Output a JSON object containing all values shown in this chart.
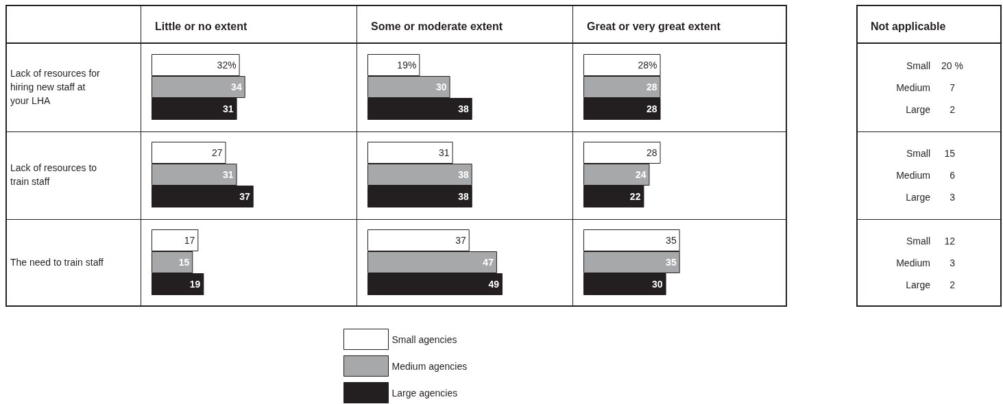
{
  "chart_data": [
    {
      "type": "bar",
      "orientation": "horizontal",
      "title": "Little or no extent",
      "categories": [
        "Lack of resources for hiring new staff at your LHA",
        "Lack of resources to train staff",
        "The need to train staff"
      ],
      "tick_labels": "y",
      "data_labels": true,
      "series": [
        {
          "color": "#ffffff",
          "values": [
            32,
            27,
            17
          ],
          "value_labels": [
            "32%",
            "27",
            "17"
          ]
        },
        {
          "color": "#a7a8aa",
          "values": [
            34,
            31,
            15
          ]
        },
        {
          "color": "#231f20",
          "values": [
            31,
            37,
            19
          ]
        }
      ]
    },
    {
      "type": "bar",
      "orientation": "horizontal",
      "title": "Some or moderate extent",
      "categories": [
        "Lack of resources for hiring new staff at your LHA",
        "Lack of resources to train staff",
        "The need to train staff"
      ],
      "tick_labels": false,
      "data_labels": true,
      "legend": "bottom",
      "series": [
        {
          "name": "Small agencies",
          "color": "#ffffff",
          "values": [
            19,
            31,
            37
          ],
          "value_labels": [
            "19%",
            "31",
            "37"
          ]
        },
        {
          "name": "Medium agencies",
          "color": "#a7a8aa",
          "values": [
            30,
            38,
            47
          ]
        },
        {
          "name": "Large agencies",
          "color": "#231f20",
          "values": [
            38,
            38,
            49
          ]
        }
      ]
    },
    {
      "type": "bar",
      "orientation": "horizontal",
      "title": "Great or very great extent",
      "categories": [
        "Lack of resources for hiring new staff at your LHA",
        "Lack of resources to train staff",
        "The need to train staff"
      ],
      "tick_labels": false,
      "data_labels": true,
      "series": [
        {
          "color": "#ffffff",
          "values": [
            28,
            28,
            35
          ],
          "value_labels": [
            "28%",
            "28",
            "35"
          ]
        },
        {
          "color": "#a7a8aa",
          "values": [
            28,
            24,
            35
          ]
        },
        {
          "color": "#231f20",
          "values": [
            28,
            22,
            30
          ]
        }
      ]
    },
    {
      "type": "other",
      "title": "Not applicable",
      "annotations": [
        "Small",
        "20 %",
        "Medium",
        "7",
        "Large",
        "2",
        "Small",
        "15",
        "Medium",
        "6",
        "Large",
        "3",
        "Small",
        "12",
        "Medium",
        "3",
        "Large",
        "2"
      ]
    }
  ]
}
